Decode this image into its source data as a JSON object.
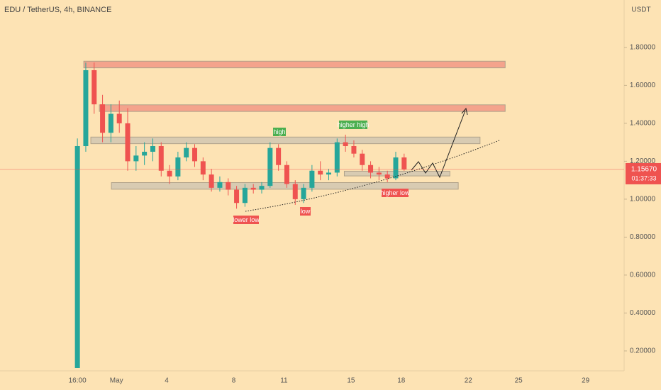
{
  "chart_data": {
    "type": "candlestick",
    "title": "EDU / TetherUS, 4h, BINANCE",
    "y_axis_unit": "USDT",
    "x": [
      -1.33,
      -0.83,
      -0.33,
      0.17,
      0.67,
      1.17,
      1.67,
      2.17,
      2.67,
      3.17,
      3.67,
      4.17,
      4.67,
      5.17,
      5.67,
      6.17,
      6.67,
      7.17,
      7.67,
      8.17,
      8.67,
      9.17,
      9.67,
      10.17,
      10.67,
      11.17,
      11.67,
      12.17,
      12.67,
      13.17,
      13.67,
      14.17,
      14.67,
      15.17,
      15.67,
      16.17,
      16.67,
      17.17,
      17.67,
      18.17
    ],
    "open": [
      0.11,
      1.28,
      1.68,
      1.5,
      1.35,
      1.45,
      1.4,
      1.2,
      1.23,
      1.25,
      1.28,
      1.15,
      1.12,
      1.22,
      1.27,
      1.2,
      1.13,
      1.06,
      1.09,
      1.05,
      0.98,
      1.06,
      1.05,
      1.07,
      1.27,
      1.18,
      1.08,
      1.0,
      1.06,
      1.15,
      1.13,
      1.14,
      1.3,
      1.28,
      1.24,
      1.18,
      1.14,
      1.13,
      1.11,
      1.22
    ],
    "high": [
      1.32,
      1.72,
      1.72,
      1.55,
      1.5,
      1.52,
      1.48,
      1.28,
      1.3,
      1.32,
      1.3,
      1.18,
      1.25,
      1.3,
      1.29,
      1.22,
      1.16,
      1.12,
      1.11,
      1.07,
      1.08,
      1.08,
      1.09,
      1.3,
      1.29,
      1.2,
      1.1,
      1.08,
      1.18,
      1.2,
      1.16,
      1.32,
      1.34,
      1.31,
      1.26,
      1.2,
      1.17,
      1.15,
      1.25,
      1.24
    ],
    "low": [
      0.11,
      1.25,
      1.45,
      1.3,
      1.3,
      1.35,
      1.15,
      1.15,
      1.18,
      1.2,
      1.12,
      1.08,
      1.1,
      1.2,
      1.17,
      1.1,
      1.04,
      1.04,
      1.02,
      0.95,
      0.96,
      1.03,
      1.03,
      1.06,
      1.15,
      1.06,
      0.97,
      0.98,
      1.04,
      1.1,
      1.1,
      1.12,
      1.25,
      1.22,
      1.15,
      1.11,
      1.1,
      1.09,
      1.1,
      1.15
    ],
    "close": [
      1.28,
      1.68,
      1.5,
      1.35,
      1.45,
      1.4,
      1.2,
      1.23,
      1.25,
      1.28,
      1.15,
      1.12,
      1.22,
      1.27,
      1.2,
      1.13,
      1.06,
      1.09,
      1.05,
      0.98,
      1.06,
      1.05,
      1.07,
      1.27,
      1.18,
      1.08,
      1.0,
      1.06,
      1.15,
      1.13,
      1.14,
      1.3,
      1.28,
      1.24,
      1.18,
      1.14,
      1.13,
      1.11,
      1.22,
      1.1567
    ],
    "up_color": "#26a69a",
    "down_color": "#ef5350",
    "ylim": [
      0.095,
      2.05
    ],
    "yticks": [
      {
        "value": 0.2,
        "label": "0.20000"
      },
      {
        "value": 0.4,
        "label": "0.40000"
      },
      {
        "value": 0.6,
        "label": "0.60000"
      },
      {
        "value": 0.8,
        "label": "0.80000"
      },
      {
        "value": 1.0,
        "label": "1.00000"
      },
      {
        "value": 1.2,
        "label": "1.20000"
      },
      {
        "value": 1.4,
        "label": "1.40000"
      },
      {
        "value": 1.6,
        "label": "1.60000"
      },
      {
        "value": 1.8,
        "label": "1.80000"
      }
    ],
    "xlim": [
      -5.95,
      31.3
    ],
    "xticks": [
      {
        "value": -1.33,
        "label": "16:00"
      },
      {
        "value": 1,
        "label": "May"
      },
      4,
      8,
      11,
      15,
      18,
      22,
      25,
      29
    ],
    "zones": [
      {
        "x": [
          -0.95,
          24.2
        ],
        "y": [
          1.7,
          1.72
        ],
        "color": "#f4a38c"
      },
      {
        "x": [
          -0.02,
          24.2
        ],
        "y": [
          1.47,
          1.49
        ],
        "color": "#f4a38c"
      },
      {
        "x": [
          -0.53,
          22.7
        ],
        "y": [
          1.3,
          1.32
        ],
        "color": "#d8cbb2"
      },
      {
        "x": [
          0.7,
          21.4
        ],
        "y": [
          1.06,
          1.08
        ],
        "color": "#d8cbb2"
      },
      {
        "x": [
          14.6,
          20.9
        ],
        "y": [
          1.13,
          1.14
        ],
        "color": "#d8cbb2"
      }
    ],
    "last_price": {
      "value": 1.1567,
      "label": "1.15670"
    },
    "countdown": "01:37:33",
    "annotations": {
      "high": "high",
      "higher_high": "higher high",
      "lower_low": "lower low",
      "low": "low",
      "higher_low": "higher low"
    }
  }
}
